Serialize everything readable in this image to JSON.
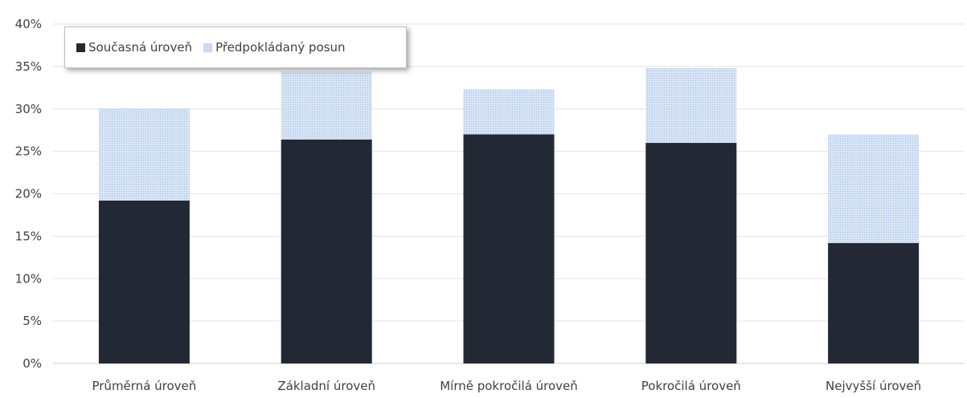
{
  "chart_data": {
    "type": "bar",
    "stacked": true,
    "categories": [
      "Průměrná úroveň",
      "Základní úroveň",
      "Mírně pokročilá úroveň",
      "Pokročilá úroveň",
      "Nejvyšší úroveň"
    ],
    "series": [
      {
        "name": "Současná úroveň",
        "values": [
          19.2,
          26.4,
          27.0,
          26.0,
          14.2
        ],
        "color": "#222834"
      },
      {
        "name": "Předpokládaný posun",
        "values": [
          10.9,
          8.0,
          5.3,
          8.8,
          12.8
        ],
        "color": "#dbe7f6"
      }
    ],
    "ylim": [
      0,
      40
    ],
    "yticks": [
      "0%",
      "5%",
      "10%",
      "15%",
      "20%",
      "25%",
      "30%",
      "35%",
      "40%"
    ],
    "grid": true,
    "legend_position": "top-left"
  }
}
